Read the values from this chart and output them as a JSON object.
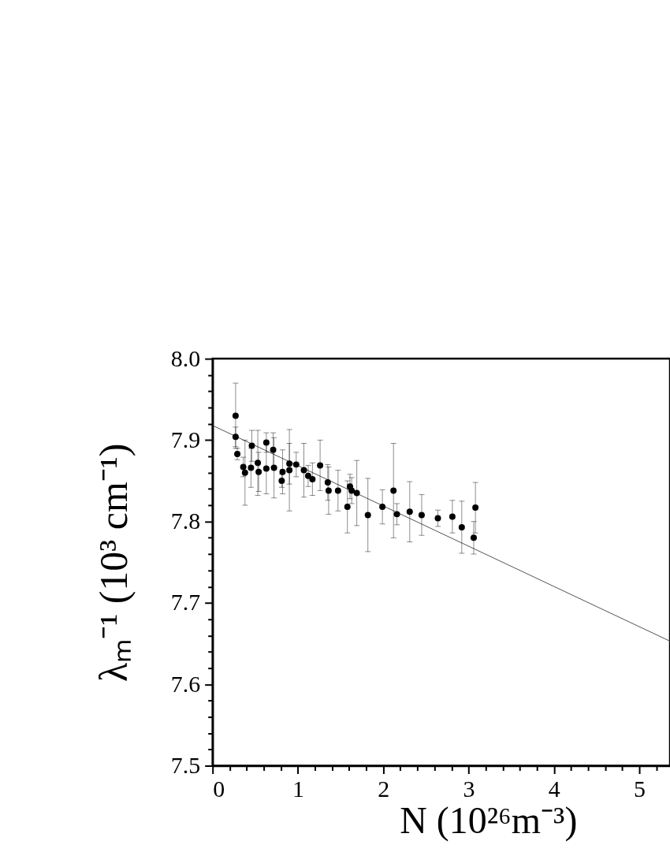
{
  "chart_data": {
    "type": "scatter",
    "xlabel": "N (10²⁶m⁻³)",
    "ylabel": "λₘ⁻¹ (10³ cm⁻¹)",
    "xlim": [
      0,
      5.36
    ],
    "ylim": [
      7.5,
      8.0
    ],
    "xticks": [
      0,
      {
        "value": 0.2,
        "label": null
      },
      {
        "value": 0.4,
        "label": null
      },
      {
        "value": 0.6,
        "label": null
      },
      {
        "value": 0.8,
        "label": null
      },
      1,
      {
        "value": 1.2,
        "label": null
      },
      {
        "value": 1.4,
        "label": null
      },
      {
        "value": 1.6,
        "label": null
      },
      {
        "value": 1.8,
        "label": null
      },
      2,
      {
        "value": 2.2,
        "label": null
      },
      {
        "value": 2.4,
        "label": null
      },
      {
        "value": 2.6,
        "label": null
      },
      {
        "value": 2.8,
        "label": null
      },
      3,
      {
        "value": 3.2,
        "label": null
      },
      {
        "value": 3.4,
        "label": null
      },
      {
        "value": 3.6,
        "label": null
      },
      {
        "value": 3.8,
        "label": null
      },
      4,
      {
        "value": 4.2,
        "label": null
      },
      {
        "value": 4.4,
        "label": null
      },
      {
        "value": 4.6,
        "label": null
      },
      {
        "value": 4.8,
        "label": null
      },
      5,
      {
        "value": 5.2,
        "label": null
      }
    ],
    "yticks": [
      7.5,
      {
        "value": 7.52,
        "label": null
      },
      {
        "value": 7.54,
        "label": null
      },
      {
        "value": 7.56,
        "label": null
      },
      {
        "value": 7.58,
        "label": null
      },
      7.6,
      {
        "value": 7.62,
        "label": null
      },
      {
        "value": 7.64,
        "label": null
      },
      {
        "value": 7.66,
        "label": null
      },
      {
        "value": 7.68,
        "label": null
      },
      7.7,
      {
        "value": 7.72,
        "label": null
      },
      {
        "value": 7.74,
        "label": null
      },
      {
        "value": 7.76,
        "label": null
      },
      {
        "value": 7.78,
        "label": null
      },
      7.8,
      {
        "value": 7.82,
        "label": null
      },
      {
        "value": 7.84,
        "label": null
      },
      {
        "value": 7.86,
        "label": null
      },
      {
        "value": 7.88,
        "label": null
      },
      7.9,
      {
        "value": 7.92,
        "label": null
      },
      {
        "value": 7.94,
        "label": null
      },
      {
        "value": 7.96,
        "label": null
      },
      {
        "value": 7.98,
        "label": null
      },
      {
        "value": 8,
        "label": "8.0"
      }
    ],
    "grid": false,
    "series": [
      {
        "type": "line",
        "color": "#404040",
        "marker": "none",
        "x": [
          0,
          5.36
        ],
        "values": [
          7.918,
          7.653
        ]
      },
      {
        "color": "#000000",
        "marker": "circle",
        "x": [
          0.27,
          0.27,
          0.29,
          0.36,
          0.38,
          0.45,
          0.46,
          0.53,
          0.54,
          0.63,
          0.63,
          0.71,
          0.72,
          0.81,
          0.82,
          0.9,
          0.9,
          0.98,
          1.07,
          1.12,
          1.17,
          1.26,
          1.35,
          1.36,
          1.47,
          1.58,
          1.61,
          1.63,
          1.69,
          1.82,
          1.99,
          2.12,
          2.16,
          2.31,
          2.45,
          2.64,
          2.81,
          2.92,
          3.06,
          3.08
        ],
        "values": [
          7.93,
          7.904,
          7.883,
          7.867,
          7.86,
          7.866,
          7.893,
          7.872,
          7.861,
          7.865,
          7.897,
          7.888,
          7.866,
          7.85,
          7.861,
          7.871,
          7.863,
          7.87,
          7.863,
          7.856,
          7.852,
          7.869,
          7.848,
          7.838,
          7.838,
          7.818,
          7.843,
          7.838,
          7.835,
          7.808,
          7.818,
          7.838,
          7.809,
          7.812,
          7.808,
          7.804,
          7.806,
          7.793,
          7.78,
          7.817
        ],
        "errors": [
          0.04,
          0.012,
          0.007,
          0.012,
          0.04,
          0.024,
          0.019,
          0.04,
          0.024,
          0.031,
          0.012,
          0.021,
          0.037,
          0.008,
          0.027,
          0.025,
          0.05,
          0.015,
          0.033,
          0.013,
          0.02,
          0.031,
          0.022,
          0.029,
          0.025,
          0.032,
          0.015,
          0.016,
          0.04,
          0.045,
          0.021,
          0.058,
          0.013,
          0.037,
          0.025,
          0.01,
          0.02,
          0.032,
          0.02,
          0.031
        ]
      }
    ]
  }
}
